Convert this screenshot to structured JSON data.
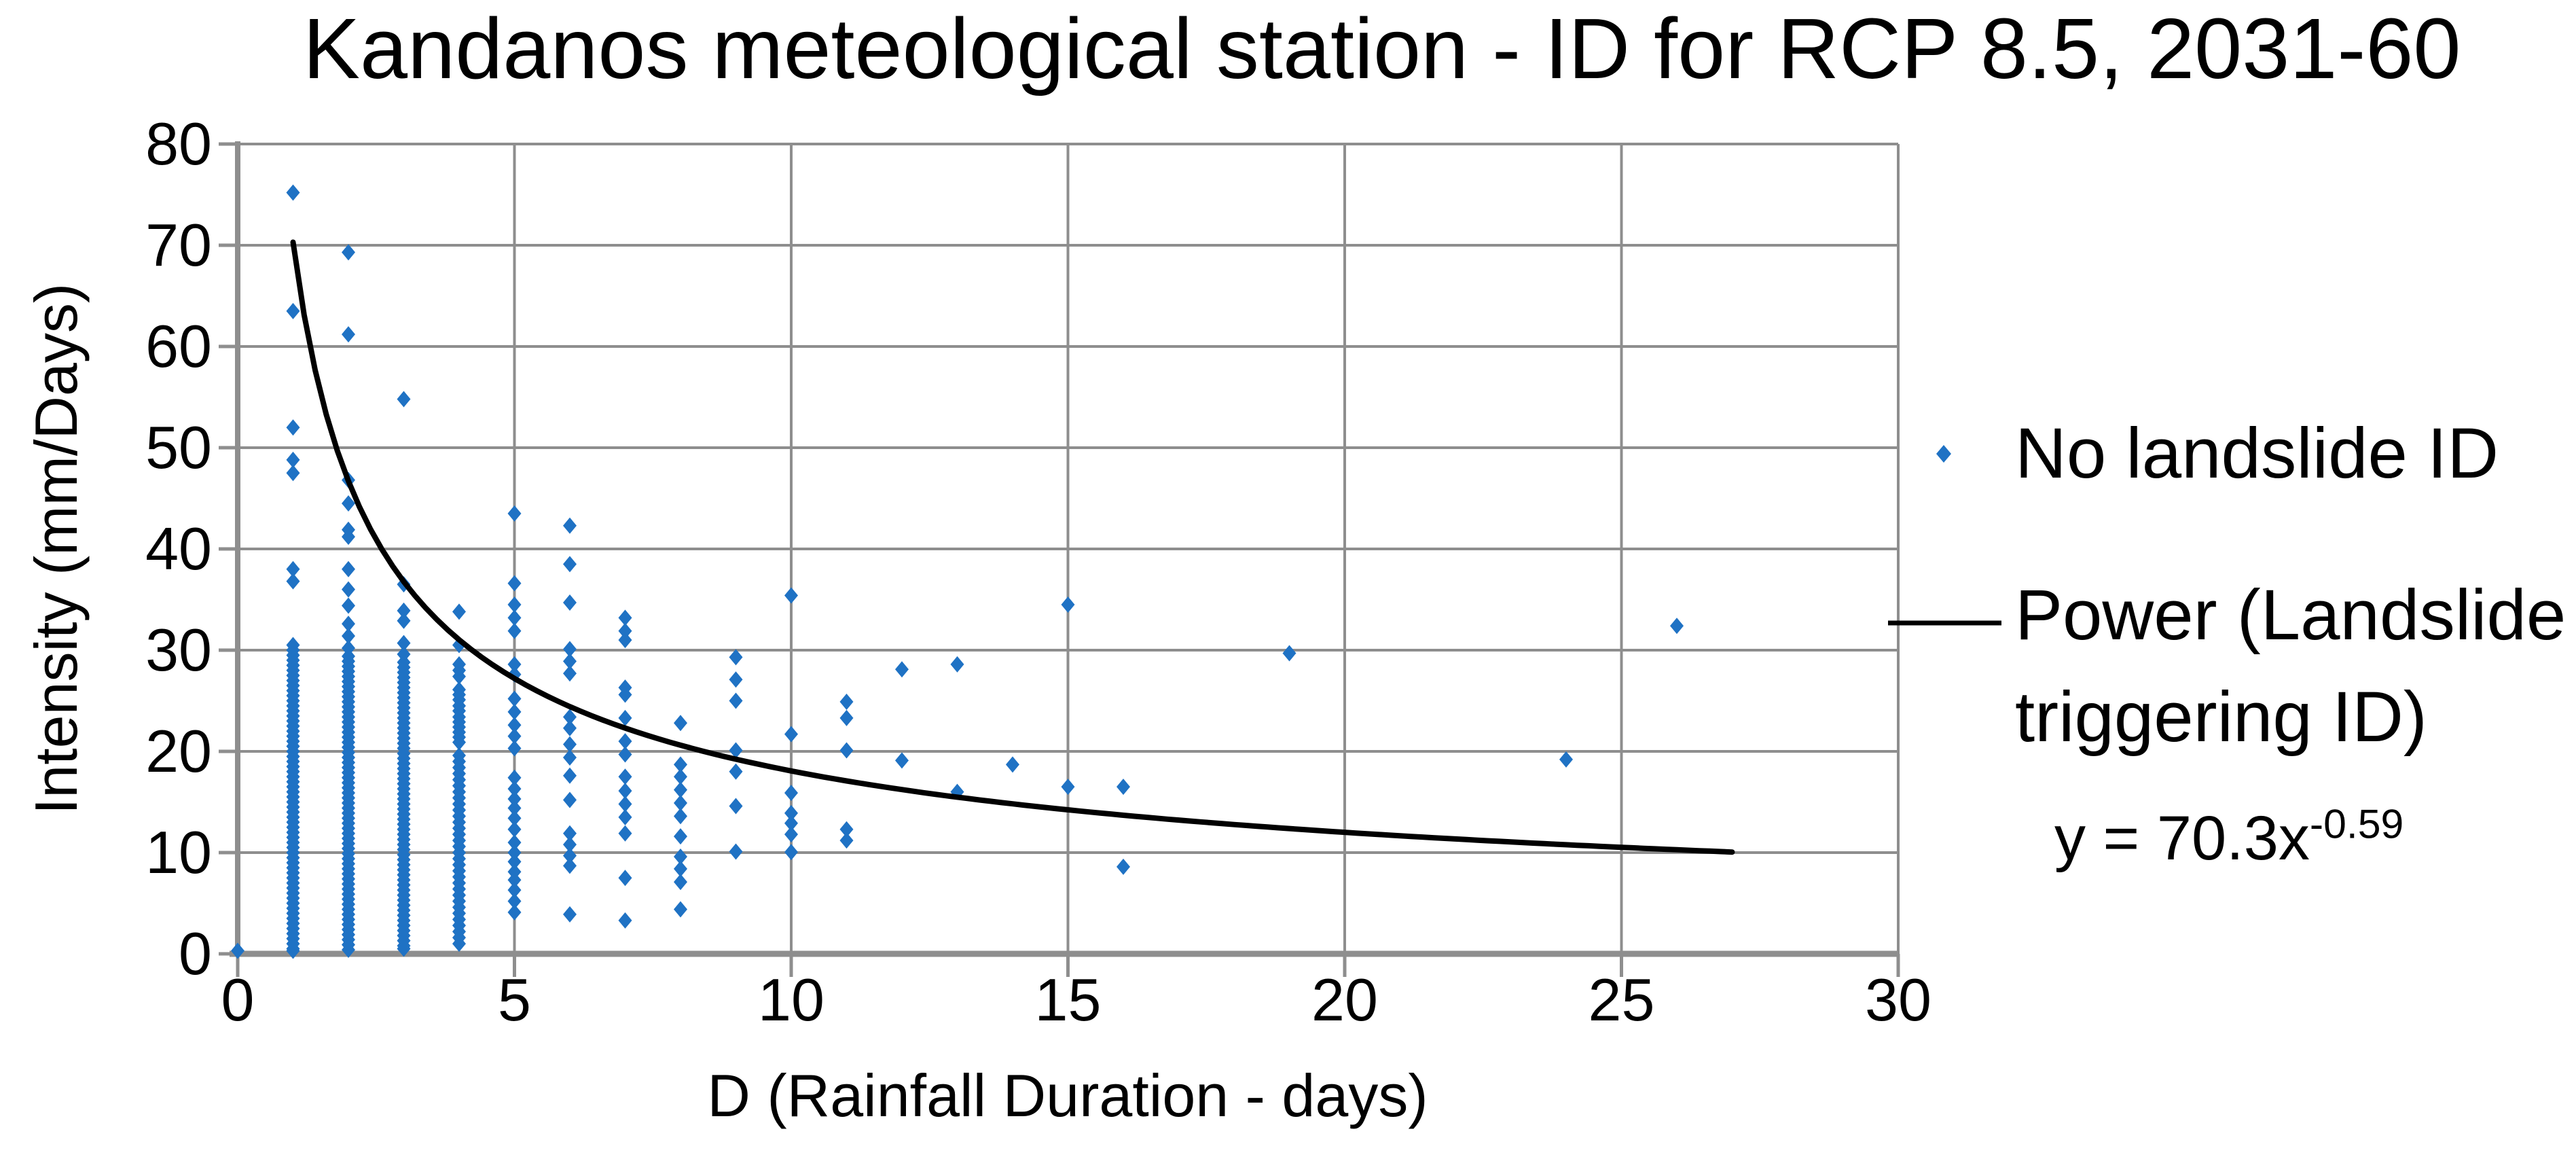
{
  "chart_data": {
    "type": "scatter",
    "title": "Kandanos meteological station - ID for RCP 8.5, 2031-60",
    "xlabel": "D (Rainfall Duration - days)",
    "ylabel": "Intensity (mm/Days)",
    "xlim": [
      0,
      30
    ],
    "ylim": [
      0,
      80
    ],
    "xticks": [
      0,
      5,
      10,
      15,
      20,
      25,
      30
    ],
    "yticks": [
      0,
      10,
      20,
      30,
      40,
      50,
      60,
      70,
      80
    ],
    "grid": true,
    "legend_position": "right",
    "colors": {
      "marker": "#1F72C4",
      "trendline": "#000000",
      "gridline": "#8E8E8E",
      "axis": "#8E8E8E",
      "text": "#000000"
    },
    "series": [
      {
        "name": "No landslide ID",
        "marker": "diamond",
        "color": "#1F72C4",
        "columns": [
          {
            "x": 0,
            "values": [
              0.3
            ]
          },
          {
            "x": 1,
            "values": [
              75.2,
              63.5,
              52,
              48.8,
              47.5,
              38,
              36.8,
              30.5,
              30,
              29.5,
              29,
              28.5,
              28,
              27.5,
              27,
              26.5,
              26,
              25.5,
              25,
              24.5,
              24,
              23.5,
              23,
              22.5,
              22,
              21.5,
              21,
              20.5,
              20,
              19.5,
              19,
              18.5,
              18,
              17.5,
              17,
              16.5,
              16,
              15.5,
              15,
              14.5,
              14,
              13.5,
              13,
              12.5,
              12,
              11.5,
              11,
              10.5,
              10,
              9.5,
              9,
              8.5,
              8,
              7.5,
              7,
              6.5,
              6,
              5.5,
              5,
              4.5,
              4,
              3.5,
              3,
              2.5,
              2,
              1.5,
              1,
              0.5,
              0.3
            ]
          },
          {
            "x": 2,
            "values": [
              69.3,
              61.2,
              46.8,
              44.5,
              41.9,
              41.2,
              38,
              36,
              34.4,
              32.6,
              31.4,
              30.2,
              29.4,
              28.9,
              28.4,
              27.9,
              27.4,
              26.9,
              26.4,
              25.9,
              25.4,
              24.9,
              24.4,
              23.9,
              23.4,
              22.9,
              22.4,
              21.9,
              21.4,
              20.9,
              20.4,
              19.9,
              19.4,
              18.9,
              18.4,
              17.9,
              17.4,
              16.9,
              16.4,
              15.9,
              15.4,
              14.9,
              14.4,
              13.9,
              13.4,
              12.9,
              12.4,
              11.9,
              11.4,
              10.9,
              10.4,
              9.9,
              9.4,
              8.9,
              8.4,
              7.9,
              7.4,
              6.9,
              6.4,
              5.9,
              5.4,
              4.9,
              4.4,
              3.9,
              3.4,
              2.9,
              2.4,
              1.9,
              1.4,
              0.9,
              0.4
            ]
          },
          {
            "x": 3,
            "values": [
              54.8,
              36.5,
              33.9,
              32.9,
              30.7,
              29.6,
              28.8,
              28.3,
              27.8,
              27.3,
              26.8,
              26.3,
              25.8,
              25.3,
              24.8,
              24.3,
              23.8,
              23.3,
              22.8,
              22.3,
              21.8,
              21.3,
              20.8,
              20.3,
              19.8,
              19.3,
              18.8,
              18.3,
              17.8,
              17.3,
              16.8,
              16.3,
              15.8,
              15.3,
              14.8,
              14.3,
              13.8,
              13.3,
              12.8,
              12.3,
              11.8,
              11.3,
              10.8,
              10.3,
              9.8,
              9.3,
              8.8,
              8.3,
              7.8,
              7.3,
              6.8,
              6.3,
              5.8,
              5.3,
              4.8,
              4.3,
              3.8,
              3.3,
              2.8,
              2.3,
              1.8,
              1.3,
              0.8,
              0.5
            ]
          },
          {
            "x": 4,
            "values": [
              33.8,
              30.5,
              28.6,
              28,
              27.4,
              26.1,
              25.6,
              25.1,
              24.5,
              24,
              23.4,
              22.9,
              22.4,
              21.9,
              21.4,
              20.9,
              19.6,
              19,
              18.4,
              17.8,
              17.2,
              16.6,
              16,
              15.4,
              14.8,
              14.2,
              13.6,
              13,
              12.4,
              11.8,
              11.2,
              10.6,
              10,
              9.4,
              8.8,
              8.2,
              7.6,
              7,
              6.4,
              5.8,
              5.2,
              4.6,
              4,
              3.4,
              2.8,
              2.2,
              1.6,
              1
            ]
          },
          {
            "x": 5,
            "values": [
              43.5,
              36.6,
              34.5,
              33.2,
              31.9,
              28.6,
              27.6,
              25.2,
              23.9,
              22.6,
              21.5,
              20.3,
              17.4,
              16.3,
              15.3,
              14.4,
              13.4,
              12.3,
              11,
              10,
              9.1,
              8.1,
              7.3,
              6.3,
              5.2,
              4.1
            ]
          },
          {
            "x": 6,
            "values": [
              42.3,
              38.5,
              34.7,
              30.1,
              28.9,
              27.7,
              23.4,
              22.3,
              20.7,
              19.4,
              17.6,
              15.2,
              11.9,
              10.8,
              9.7,
              8.7,
              3.9
            ]
          },
          {
            "x": 7,
            "values": [
              33.2,
              31.9,
              31,
              26.3,
              25.6,
              23.3,
              21,
              19.7,
              17.5,
              16.1,
              14.8,
              13.5,
              11.9,
              7.5,
              3.3
            ]
          },
          {
            "x": 8,
            "values": [
              22.8,
              18.7,
              17.5,
              16.2,
              14.9,
              13.6,
              11.6,
              9.6,
              8.4,
              7.1,
              4.4
            ]
          },
          {
            "x": 9,
            "values": [
              29.3,
              27.1,
              25,
              20.1,
              18,
              14.6,
              10.1
            ]
          },
          {
            "x": 10,
            "values": [
              35.4,
              21.7,
              15.9,
              13.9,
              12.9,
              11.8,
              10.05
            ]
          },
          {
            "x": 11,
            "values": [
              24.9,
              23.3,
              20.1,
              12.3,
              11.2
            ]
          },
          {
            "x": 12,
            "values": [
              28.1,
              19.1
            ]
          },
          {
            "x": 13,
            "values": [
              28.6,
              16
            ]
          },
          {
            "x": 14,
            "values": [
              18.7
            ]
          },
          {
            "x": 15,
            "values": [
              34.5,
              16.5
            ]
          },
          {
            "x": 16,
            "values": [
              16.5,
              8.6
            ]
          },
          {
            "x": 19,
            "values": [
              29.7
            ]
          },
          {
            "x": 24,
            "values": [
              19.2
            ]
          },
          {
            "x": 26,
            "values": [
              32.4
            ]
          }
        ]
      }
    ],
    "trendline": {
      "name": "Power (Landslide triggering ID)",
      "label_line1": "Power (Landslide",
      "label_line2": "triggering ID)",
      "equation_base": "y = 70.3x",
      "equation_exponent": "-0.59",
      "coefficient": 70.3,
      "exponent": -0.59,
      "x_start": 1,
      "x_end": 27
    }
  }
}
